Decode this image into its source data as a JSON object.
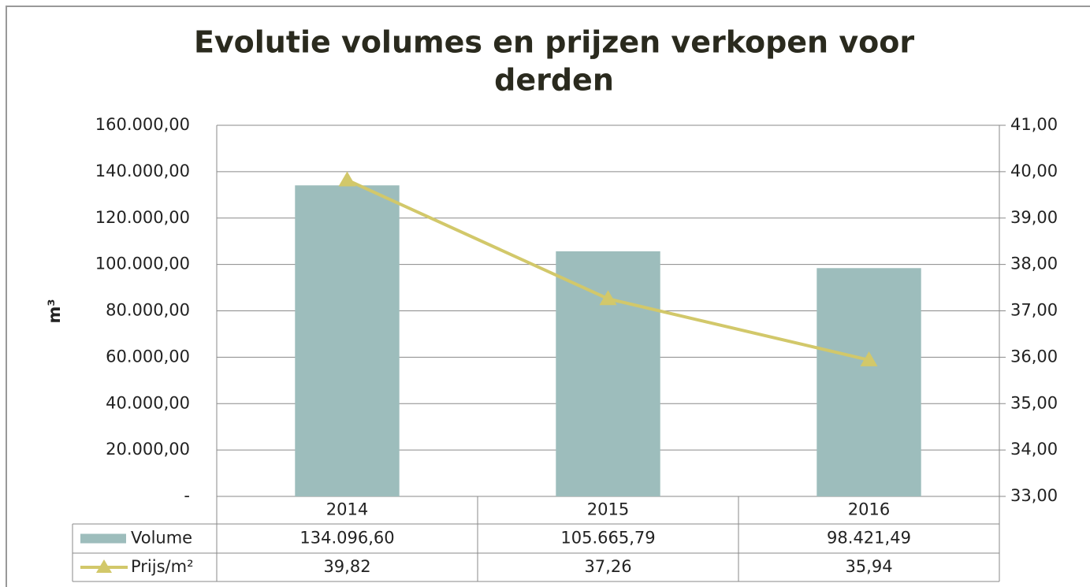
{
  "chart_data": {
    "type": "bar",
    "title": [
      "Evolutie volumes en prijzen verkopen voor",
      "derden"
    ],
    "y_label": "m³",
    "categories": [
      "2014",
      "2015",
      "2016"
    ],
    "series": [
      {
        "name": "Volume",
        "color": "#9dbdbc",
        "values": [
          134096.6,
          105665.79,
          98421.49
        ],
        "value_labels": [
          "134.096,60",
          "105.665,79",
          "98.421,49"
        ]
      },
      {
        "name": "Prijs/m²",
        "color": "#d2c86a",
        "type": "line",
        "axis": "y2",
        "values": [
          39.82,
          37.26,
          35.94
        ],
        "value_labels": [
          "39,82",
          "37,26",
          "35,94"
        ]
      }
    ],
    "ylim": [
      0,
      160000
    ],
    "yticks": [
      {
        "value": 0,
        "label": "-"
      },
      {
        "value": 20000,
        "label": "20.000,00"
      },
      {
        "value": 40000,
        "label": "40.000,00"
      },
      {
        "value": 60000,
        "label": "60.000,00"
      },
      {
        "value": 80000,
        "label": "80.000,00"
      },
      {
        "value": 100000,
        "label": "100.000,00"
      },
      {
        "value": 120000,
        "label": "120.000,00"
      },
      {
        "value": 140000,
        "label": "140.000,00"
      },
      {
        "value": 160000,
        "label": "160.000,00"
      }
    ],
    "y2lim": [
      33,
      41
    ],
    "y2ticks": [
      {
        "value": 33,
        "label": "33,00"
      },
      {
        "value": 34,
        "label": "34,00"
      },
      {
        "value": 35,
        "label": "35,00"
      },
      {
        "value": 36,
        "label": "36,00"
      },
      {
        "value": 37,
        "label": "37,00"
      },
      {
        "value": 38,
        "label": "38,00"
      },
      {
        "value": 39,
        "label": "39,00"
      },
      {
        "value": 40,
        "label": "40,00"
      },
      {
        "value": 41,
        "label": "41,00"
      }
    ],
    "grid": true,
    "data_table": true
  }
}
